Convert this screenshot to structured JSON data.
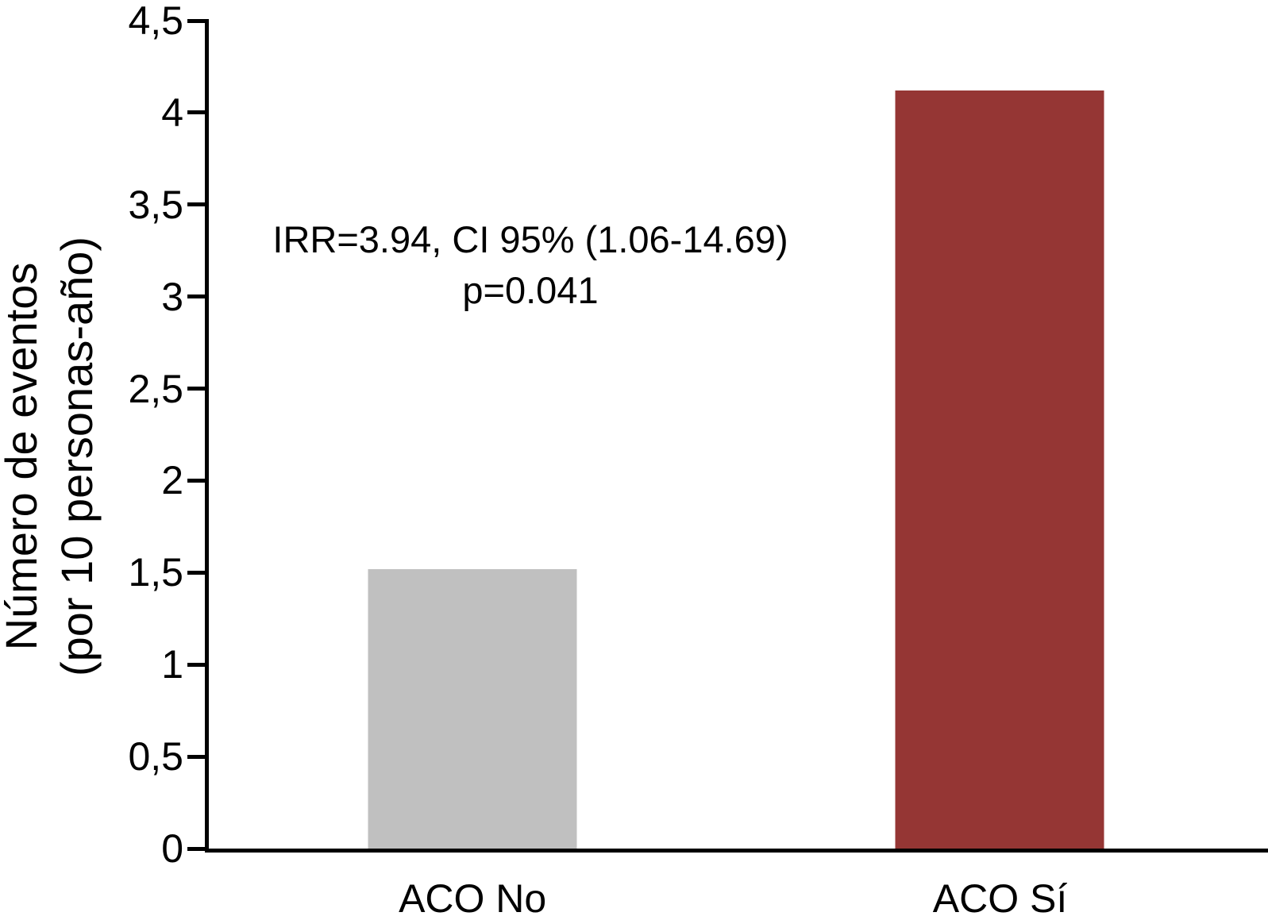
{
  "chart_data": {
    "type": "bar",
    "title": "",
    "xlabel": "",
    "ylabel": "Número de eventos (por 10 personas-año)",
    "ylabel_lines": [
      "Número de eventos",
      "(por 10 personas-año)"
    ],
    "categories": [
      "ACO No",
      "ACO Sí"
    ],
    "values": [
      1.52,
      4.12
    ],
    "bar_colors": [
      "#c0c0c0",
      "#953634"
    ],
    "ylim": [
      0,
      4.5
    ],
    "yticks": [
      {
        "value": 0,
        "label": "0"
      },
      {
        "value": 0.5,
        "label": "0,5"
      },
      {
        "value": 1,
        "label": "1"
      },
      {
        "value": 1.5,
        "label": "1,5"
      },
      {
        "value": 2,
        "label": "2"
      },
      {
        "value": 2.5,
        "label": "2,5"
      },
      {
        "value": 3,
        "label": "3"
      },
      {
        "value": 3.5,
        "label": "3,5"
      },
      {
        "value": 4,
        "label": "4"
      },
      {
        "value": 4.5,
        "label": "4,5"
      }
    ],
    "annotation_lines": [
      "IRR=3.94, CI 95% (1.06-14.69)",
      "p=0.041"
    ],
    "axis_color": "#000000",
    "background": "#ffffff",
    "grid": false,
    "legend": "none",
    "decimal_separator": ","
  }
}
